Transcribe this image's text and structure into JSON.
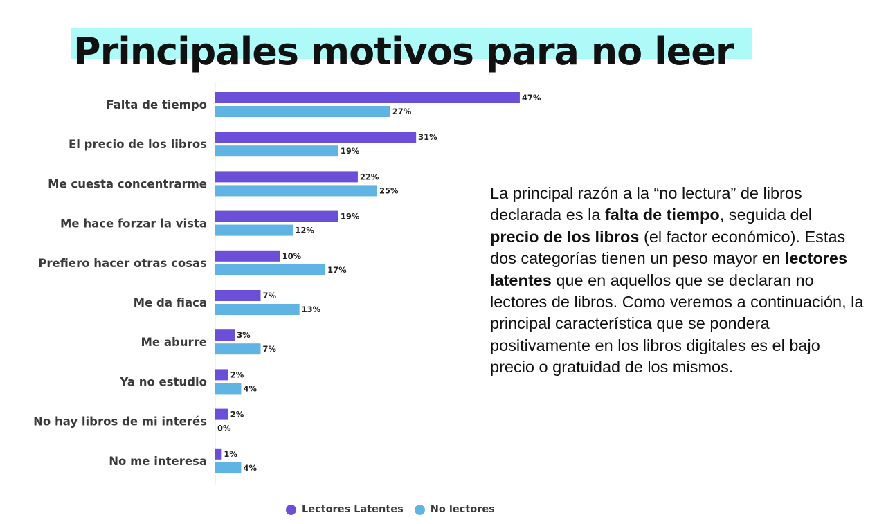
{
  "title": "Principales motivos para no leer",
  "colors": {
    "title_highlight": "#aefaf9",
    "lectores_latentes": "#6b4fd9",
    "no_lectores": "#5fb4e3"
  },
  "chart_data": {
    "type": "bar",
    "orientation": "horizontal",
    "categories": [
      "Falta de tiempo",
      "El precio de los libros",
      "Me cuesta concentrarme",
      "Me hace forzar la vista",
      "Prefiero hacer otras cosas",
      "Me da fiaca",
      "Me aburre",
      "Ya no estudio",
      "No hay libros de mi interés",
      "No me interesa"
    ],
    "series": [
      {
        "name": "Lectores Latentes",
        "values": [
          47,
          31,
          22,
          19,
          10,
          7,
          3,
          2,
          2,
          1
        ],
        "labels": [
          "47%",
          "31%",
          "22%",
          "19%",
          "10%",
          "7%",
          "3%",
          "2%",
          "2%",
          "1%"
        ],
        "color": "#6b4fd9"
      },
      {
        "name": "No lectores",
        "values": [
          27,
          19,
          25,
          12,
          17,
          13,
          7,
          4,
          0,
          4
        ],
        "labels": [
          "27%",
          "19%",
          "25%",
          "12%",
          "17%",
          "13%",
          "7%",
          "4%",
          "0%",
          "4%"
        ],
        "color": "#5fb4e3"
      }
    ],
    "xlim": [
      0,
      50
    ],
    "grid": false,
    "legend_position": "bottom"
  },
  "note": {
    "p1": "La principal razón a la “no lectura” de libros declarada es la ",
    "b1": "falta de tiempo",
    "p2": ", seguida del ",
    "b2": "precio de los libros",
    "p3": " (el factor económico). Estas dos categorías tienen un peso mayor en ",
    "b3": "lectores latentes",
    "p4": " que en aquellos que se declaran no lectores de libros. Como veremos a continuación, la principal característica que se pondera positivamente en los libros digitales es el bajo precio o gratuidad de los mismos."
  }
}
